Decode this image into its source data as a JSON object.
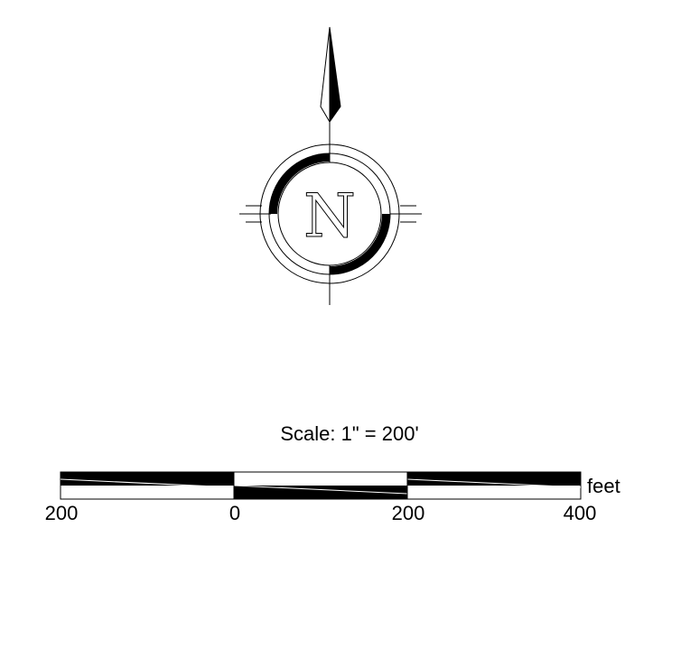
{
  "north_arrow": {
    "letter": "N"
  },
  "scale_bar": {
    "title": "Scale: 1\" = 200'",
    "unit": "feet",
    "ticks": [
      "200",
      "0",
      "200",
      "400"
    ]
  },
  "colors": {
    "ink": "#000000",
    "paper": "#ffffff"
  }
}
